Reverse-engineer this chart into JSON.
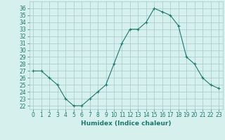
{
  "x": [
    0,
    1,
    2,
    3,
    4,
    5,
    6,
    7,
    8,
    9,
    10,
    11,
    12,
    13,
    14,
    15,
    16,
    17,
    18,
    19,
    20,
    21,
    22,
    23
  ],
  "y": [
    27,
    27,
    26,
    25,
    23,
    22,
    22,
    23,
    24,
    25,
    28,
    31,
    33,
    33,
    34,
    36,
    35.5,
    35,
    33.5,
    29,
    28,
    26,
    25,
    24.5
  ],
  "line_color": "#1a7a6e",
  "marker": "+",
  "marker_size": 3,
  "bg_color": "#d6f0ee",
  "grid_color": "#a0cac8",
  "xlabel": "Humidex (Indice chaleur)",
  "xlabel_fontsize": 6.5,
  "ylabel_ticks": [
    22,
    23,
    24,
    25,
    26,
    27,
    28,
    29,
    30,
    31,
    32,
    33,
    34,
    35,
    36
  ],
  "ylim": [
    21.5,
    37
  ],
  "xlim": [
    -0.5,
    23.5
  ],
  "tick_fontsize": 5.5,
  "linewidth": 0.8,
  "markeredgewidth": 0.8
}
